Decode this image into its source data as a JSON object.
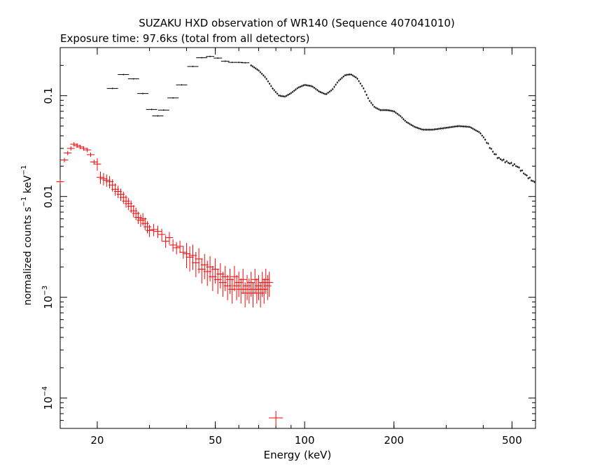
{
  "chart_data": {
    "type": "scatter",
    "title": "SUZAKU HXD observation of WR140 (Sequence 407041010)",
    "subtitle": "Exposure time: 97.6ks (total from all detectors)",
    "xlabel": "Energy (keV)",
    "ylabel": {
      "base": "normalized counts s",
      "exp1": "−1",
      "mid": " keV",
      "exp2": "−1"
    },
    "x_scale": "log",
    "y_scale": "log",
    "xlim": [
      15,
      600
    ],
    "ylim": [
      5e-05,
      0.3
    ],
    "x_ticks": [
      {
        "value": 20,
        "label": "20"
      },
      {
        "value": 50,
        "label": "50"
      },
      {
        "value": 100,
        "label": "100"
      },
      {
        "value": 200,
        "label": "200"
      },
      {
        "value": 500,
        "label": "500"
      }
    ],
    "y_ticks": [
      {
        "value": 0.1,
        "label": "0.1"
      },
      {
        "value": 0.01,
        "label": "0.01"
      },
      {
        "value": 0.001,
        "base": "10",
        "exp": "−3"
      },
      {
        "value": 0.0001,
        "base": "10",
        "exp": "−4"
      }
    ],
    "colors": {
      "black_series": "#000000",
      "red_series": "#ff0000"
    },
    "series": [
      {
        "color": "#000000",
        "binned_points": [
          [
            22.5,
            0.118
          ],
          [
            24.5,
            0.162
          ],
          [
            26.5,
            0.147
          ],
          [
            28.5,
            0.105
          ],
          [
            30.5,
            0.073
          ],
          [
            32.0,
            0.063
          ],
          [
            33.5,
            0.072
          ],
          [
            36.0,
            0.095
          ],
          [
            38.5,
            0.128
          ],
          [
            42.0,
            0.195
          ],
          [
            45.0,
            0.238
          ],
          [
            48.0,
            0.245
          ],
          [
            51.0,
            0.236
          ],
          [
            54.0,
            0.22
          ],
          [
            57.0,
            0.214
          ],
          [
            60.0,
            0.214
          ],
          [
            63.0,
            0.212
          ]
        ],
        "curve": [
          [
            66,
            0.2
          ],
          [
            70,
            0.178
          ],
          [
            74,
            0.15
          ],
          [
            78,
            0.118
          ],
          [
            82,
            0.1
          ],
          [
            86,
            0.098
          ],
          [
            90,
            0.106
          ],
          [
            95,
            0.12
          ],
          [
            100,
            0.128
          ],
          [
            106,
            0.124
          ],
          [
            112,
            0.11
          ],
          [
            118,
            0.103
          ],
          [
            124,
            0.115
          ],
          [
            130,
            0.14
          ],
          [
            137,
            0.16
          ],
          [
            143,
            0.163
          ],
          [
            150,
            0.15
          ],
          [
            158,
            0.118
          ],
          [
            165,
            0.09
          ],
          [
            172,
            0.077
          ],
          [
            180,
            0.072
          ],
          [
            190,
            0.072
          ],
          [
            200,
            0.07
          ],
          [
            210,
            0.063
          ],
          [
            220,
            0.055
          ],
          [
            235,
            0.049
          ],
          [
            250,
            0.046
          ],
          [
            270,
            0.046
          ],
          [
            300,
            0.048
          ],
          [
            330,
            0.05
          ],
          [
            360,
            0.049
          ],
          [
            390,
            0.043
          ],
          [
            410,
            0.035
          ],
          [
            430,
            0.028
          ],
          [
            450,
            0.024
          ],
          [
            480,
            0.022
          ],
          [
            520,
            0.02
          ],
          [
            560,
            0.016
          ],
          [
            600,
            0.0135
          ]
        ]
      },
      {
        "color": "#ff0000",
        "points": [
          [
            15.0,
            0.014
          ],
          [
            15.5,
            0.023
          ],
          [
            15.9,
            0.027
          ],
          [
            16.3,
            0.03
          ],
          [
            16.7,
            0.033
          ],
          [
            17.1,
            0.032
          ],
          [
            17.5,
            0.031
          ],
          [
            18.0,
            0.03
          ],
          [
            18.5,
            0.029
          ],
          [
            19.0,
            0.026
          ],
          [
            19.5,
            0.022
          ],
          [
            20.0,
            0.021
          ],
          [
            20.5,
            0.0155
          ],
          [
            21.0,
            0.015
          ],
          [
            21.5,
            0.0145
          ],
          [
            22.0,
            0.014
          ],
          [
            22.5,
            0.013
          ],
          [
            23.0,
            0.0118
          ],
          [
            23.5,
            0.0112
          ],
          [
            24.0,
            0.0105
          ],
          [
            24.5,
            0.0098
          ],
          [
            25.0,
            0.009
          ],
          [
            25.5,
            0.0085
          ],
          [
            26.0,
            0.008
          ],
          [
            26.5,
            0.0072
          ],
          [
            27.0,
            0.0068
          ],
          [
            27.5,
            0.0062
          ],
          [
            28.0,
            0.0058
          ],
          [
            28.5,
            0.006
          ],
          [
            29.0,
            0.0054
          ],
          [
            29.5,
            0.005
          ],
          [
            30.0,
            0.0046
          ],
          [
            31.0,
            0.0047
          ],
          [
            32.0,
            0.0045
          ],
          [
            33.0,
            0.0042
          ],
          [
            34.0,
            0.0036
          ],
          [
            35.0,
            0.0039
          ],
          [
            36.0,
            0.0033
          ],
          [
            37.0,
            0.0031
          ],
          [
            38.0,
            0.0032
          ],
          [
            39.0,
            0.0028
          ],
          [
            40.0,
            0.0027
          ],
          [
            41.0,
            0.0025
          ],
          [
            42.0,
            0.0026
          ],
          [
            43.0,
            0.0022
          ],
          [
            44.0,
            0.0024
          ],
          [
            45.0,
            0.0019
          ],
          [
            46.0,
            0.0021
          ],
          [
            47.0,
            0.0018
          ],
          [
            48.0,
            0.002
          ],
          [
            49.0,
            0.0016
          ],
          [
            50.0,
            0.0019
          ],
          [
            51.0,
            0.0015
          ],
          [
            52.0,
            0.0017
          ],
          [
            53.0,
            0.0014
          ],
          [
            54.0,
            0.0016
          ],
          [
            55.0,
            0.0013
          ],
          [
            56.0,
            0.0015
          ],
          [
            57.0,
            0.0012
          ],
          [
            58.0,
            0.0016
          ],
          [
            59.0,
            0.0013
          ],
          [
            60.0,
            0.0014
          ],
          [
            61.0,
            0.0012
          ],
          [
            62.0,
            0.0015
          ],
          [
            63.0,
            0.0011
          ],
          [
            64.0,
            0.0013
          ],
          [
            65.0,
            0.0012
          ],
          [
            66.0,
            0.0014
          ],
          [
            67.0,
            0.0011
          ],
          [
            68.0,
            0.0015
          ],
          [
            69.0,
            0.0012
          ],
          [
            70.0,
            0.0013
          ],
          [
            71.0,
            0.0011
          ],
          [
            72.0,
            0.0014
          ],
          [
            73.0,
            0.0012
          ],
          [
            74.0,
            0.0015
          ],
          [
            75.0,
            0.0013
          ],
          [
            76.0,
            0.0014
          ]
        ],
        "outlier": [
          80.0,
          6.35e-05
        ]
      }
    ]
  }
}
